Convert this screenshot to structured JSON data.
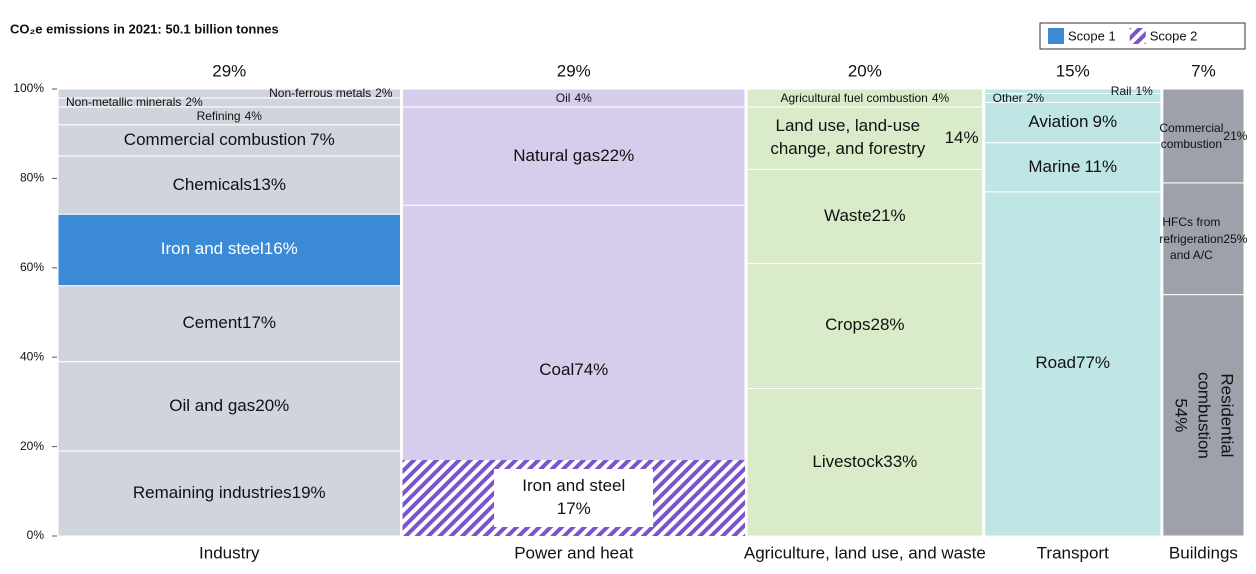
{
  "chart_data": {
    "type": "marimekko",
    "title": "CO₂e emissions in 2021: 50.1 billion tonnes",
    "legend": [
      {
        "name": "Scope 1",
        "color": "#3a8ad6"
      },
      {
        "name": "Scope 2",
        "color": "#7a55c9",
        "pattern": "hatch"
      }
    ],
    "xlim": [
      0,
      100
    ],
    "ylim": [
      0,
      100
    ],
    "yticks": [
      {
        "value": 0,
        "label": "0%"
      },
      {
        "value": 20,
        "label": "20%"
      },
      {
        "value": 40,
        "label": "40%"
      },
      {
        "value": 60,
        "label": "60%"
      },
      {
        "value": 80,
        "label": "80%"
      },
      {
        "value": 100,
        "label": "100%"
      }
    ],
    "columns": [
      {
        "name": "Industry",
        "width": 29,
        "width_label": "29%",
        "color": "#d0d4dc",
        "segments": [
          {
            "name": "Remaining industries",
            "value": 19,
            "value_label": "19%"
          },
          {
            "name": "Oil and gas",
            "value": 20,
            "value_label": "20%"
          },
          {
            "name": "Cement",
            "value": 17,
            "value_label": "17%"
          },
          {
            "name": "Iron and steel",
            "value": 16,
            "value_label": "16%",
            "legend_index": 0
          },
          {
            "name": "Chemicals",
            "value": 13,
            "value_label": "13%"
          },
          {
            "name": "Commercial combustion",
            "value": 7,
            "value_label": "7%"
          },
          {
            "name": "Refining",
            "value": 4,
            "value_label": "4%"
          },
          {
            "name": "Non-metallic minerals",
            "value": 2,
            "value_label": "2%"
          },
          {
            "name": "Non-ferrous metals",
            "value": 2,
            "value_label": "2%"
          }
        ]
      },
      {
        "name": "Power and heat",
        "width": 29,
        "width_label": "29%",
        "color": "#d6ccec",
        "segments": [
          {
            "name": "Coal",
            "value": 74,
            "value_label": "74%"
          },
          {
            "name": "Natural gas",
            "value": 22,
            "value_label": "22%"
          },
          {
            "name": "Oil",
            "value": 4,
            "value_label": "4%"
          }
        ],
        "overlay": {
          "name": "Iron and steel",
          "value": 17,
          "value_label": "17%",
          "legend_index": 1
        }
      },
      {
        "name": "Agriculture, land use, and waste",
        "width": 20,
        "width_label": "20%",
        "color": "#d9ebc9",
        "segments": [
          {
            "name": "Livestock",
            "value": 33,
            "value_label": "33%"
          },
          {
            "name": "Crops",
            "value": 28,
            "value_label": "28%"
          },
          {
            "name": "Waste",
            "value": 21,
            "value_label": "21%"
          },
          {
            "name": "Land use, land-use change, and forestry",
            "value": 14,
            "value_label": "14%"
          },
          {
            "name": "Agricultural fuel combustion",
            "value": 4,
            "value_label": "4%"
          }
        ]
      },
      {
        "name": "Transport",
        "width": 15,
        "width_label": "15%",
        "color": "#bfe6e4",
        "segments": [
          {
            "name": "Road",
            "value": 77,
            "value_label": "77%"
          },
          {
            "name": "Marine",
            "value": 11,
            "value_label": "11%"
          },
          {
            "name": "Aviation",
            "value": 9,
            "value_label": "9%"
          },
          {
            "name": "Other",
            "value": 2,
            "value_label": "2%"
          },
          {
            "name": "Rail",
            "value": 1,
            "value_label": "1%"
          }
        ]
      },
      {
        "name": "Buildings",
        "width": 7,
        "width_label": "7%",
        "color": "#9ea1aa",
        "segments": [
          {
            "name": "Residential combustion",
            "value": 54,
            "value_label": "54%"
          },
          {
            "name": "HFCs from refrigeration and A/C",
            "value": 25,
            "value_label": "25%"
          },
          {
            "name": "Commercial combustion",
            "value": 21,
            "value_label": "21%"
          }
        ]
      }
    ]
  }
}
